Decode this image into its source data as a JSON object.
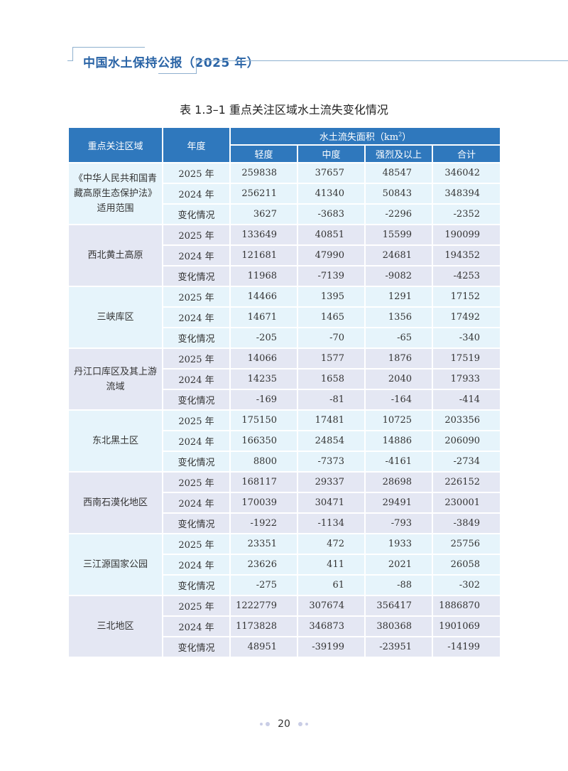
{
  "header": {
    "title": "中国水土保持公报（2025 年）"
  },
  "table": {
    "caption": "表 1.3–1  重点关注区域水土流失变化情况",
    "col_region": "重点关注区域",
    "col_year": "年度",
    "col_area": "水土流失面积（km",
    "col_area_sup": "2",
    "col_area_end": "）",
    "sub_cols": [
      "轻度",
      "中度",
      "强烈及以上",
      "合计"
    ],
    "groups": [
      {
        "region": "《中华人民共和国青藏高原生态保护法》适用范围",
        "rows": [
          {
            "year": "2025 年",
            "values": [
              "259838",
              "37657",
              "48547",
              "346042"
            ]
          },
          {
            "year": "2024 年",
            "values": [
              "256211",
              "41340",
              "50843",
              "348394"
            ]
          },
          {
            "year": "变化情况",
            "values": [
              "3627",
              "-3683",
              "-2296",
              "-2352"
            ]
          }
        ]
      },
      {
        "region": "西北黄土高原",
        "rows": [
          {
            "year": "2025 年",
            "values": [
              "133649",
              "40851",
              "15599",
              "190099"
            ]
          },
          {
            "year": "2024 年",
            "values": [
              "121681",
              "47990",
              "24681",
              "194352"
            ]
          },
          {
            "year": "变化情况",
            "values": [
              "11968",
              "-7139",
              "-9082",
              "-4253"
            ]
          }
        ]
      },
      {
        "region": "三峡库区",
        "rows": [
          {
            "year": "2025 年",
            "values": [
              "14466",
              "1395",
              "1291",
              "17152"
            ]
          },
          {
            "year": "2024 年",
            "values": [
              "14671",
              "1465",
              "1356",
              "17492"
            ]
          },
          {
            "year": "变化情况",
            "values": [
              "-205",
              "-70",
              "-65",
              "-340"
            ]
          }
        ]
      },
      {
        "region": "丹江口库区及其上游流域",
        "rows": [
          {
            "year": "2025 年",
            "values": [
              "14066",
              "1577",
              "1876",
              "17519"
            ]
          },
          {
            "year": "2024 年",
            "values": [
              "14235",
              "1658",
              "2040",
              "17933"
            ]
          },
          {
            "year": "变化情况",
            "values": [
              "-169",
              "-81",
              "-164",
              "-414"
            ]
          }
        ]
      },
      {
        "region": "东北黑土区",
        "rows": [
          {
            "year": "2025 年",
            "values": [
              "175150",
              "17481",
              "10725",
              "203356"
            ]
          },
          {
            "year": "2024 年",
            "values": [
              "166350",
              "24854",
              "14886",
              "206090"
            ]
          },
          {
            "year": "变化情况",
            "values": [
              "8800",
              "-7373",
              "-4161",
              "-2734"
            ]
          }
        ]
      },
      {
        "region": "西南石漠化地区",
        "rows": [
          {
            "year": "2025 年",
            "values": [
              "168117",
              "29337",
              "28698",
              "226152"
            ]
          },
          {
            "year": "2024 年",
            "values": [
              "170039",
              "30471",
              "29491",
              "230001"
            ]
          },
          {
            "year": "变化情况",
            "values": [
              "-1922",
              "-1134",
              "-793",
              "-3849"
            ]
          }
        ]
      },
      {
        "region": "三江源国家公园",
        "rows": [
          {
            "year": "2025 年",
            "values": [
              "23351",
              "472",
              "1933",
              "25756"
            ]
          },
          {
            "year": "2024 年",
            "values": [
              "23626",
              "411",
              "2021",
              "26058"
            ]
          },
          {
            "year": "变化情况",
            "values": [
              "-275",
              "61",
              "-88",
              "-302"
            ]
          }
        ]
      },
      {
        "region": "三北地区",
        "rows": [
          {
            "year": "2025 年",
            "values": [
              "1222779",
              "307674",
              "356417",
              "1886870"
            ]
          },
          {
            "year": "2024 年",
            "values": [
              "1173828",
              "346873",
              "380368",
              "1901069"
            ]
          },
          {
            "year": "变化情况",
            "values": [
              "48951",
              "-39199",
              "-23951",
              "-14199"
            ]
          }
        ]
      }
    ]
  },
  "footer": {
    "page_number": "20"
  },
  "colors": {
    "header_blue": "#2f78bd",
    "title_blue": "#2a64a6",
    "row_light_blue": "#e6f4fb",
    "row_lavender": "#e4e7f3"
  }
}
